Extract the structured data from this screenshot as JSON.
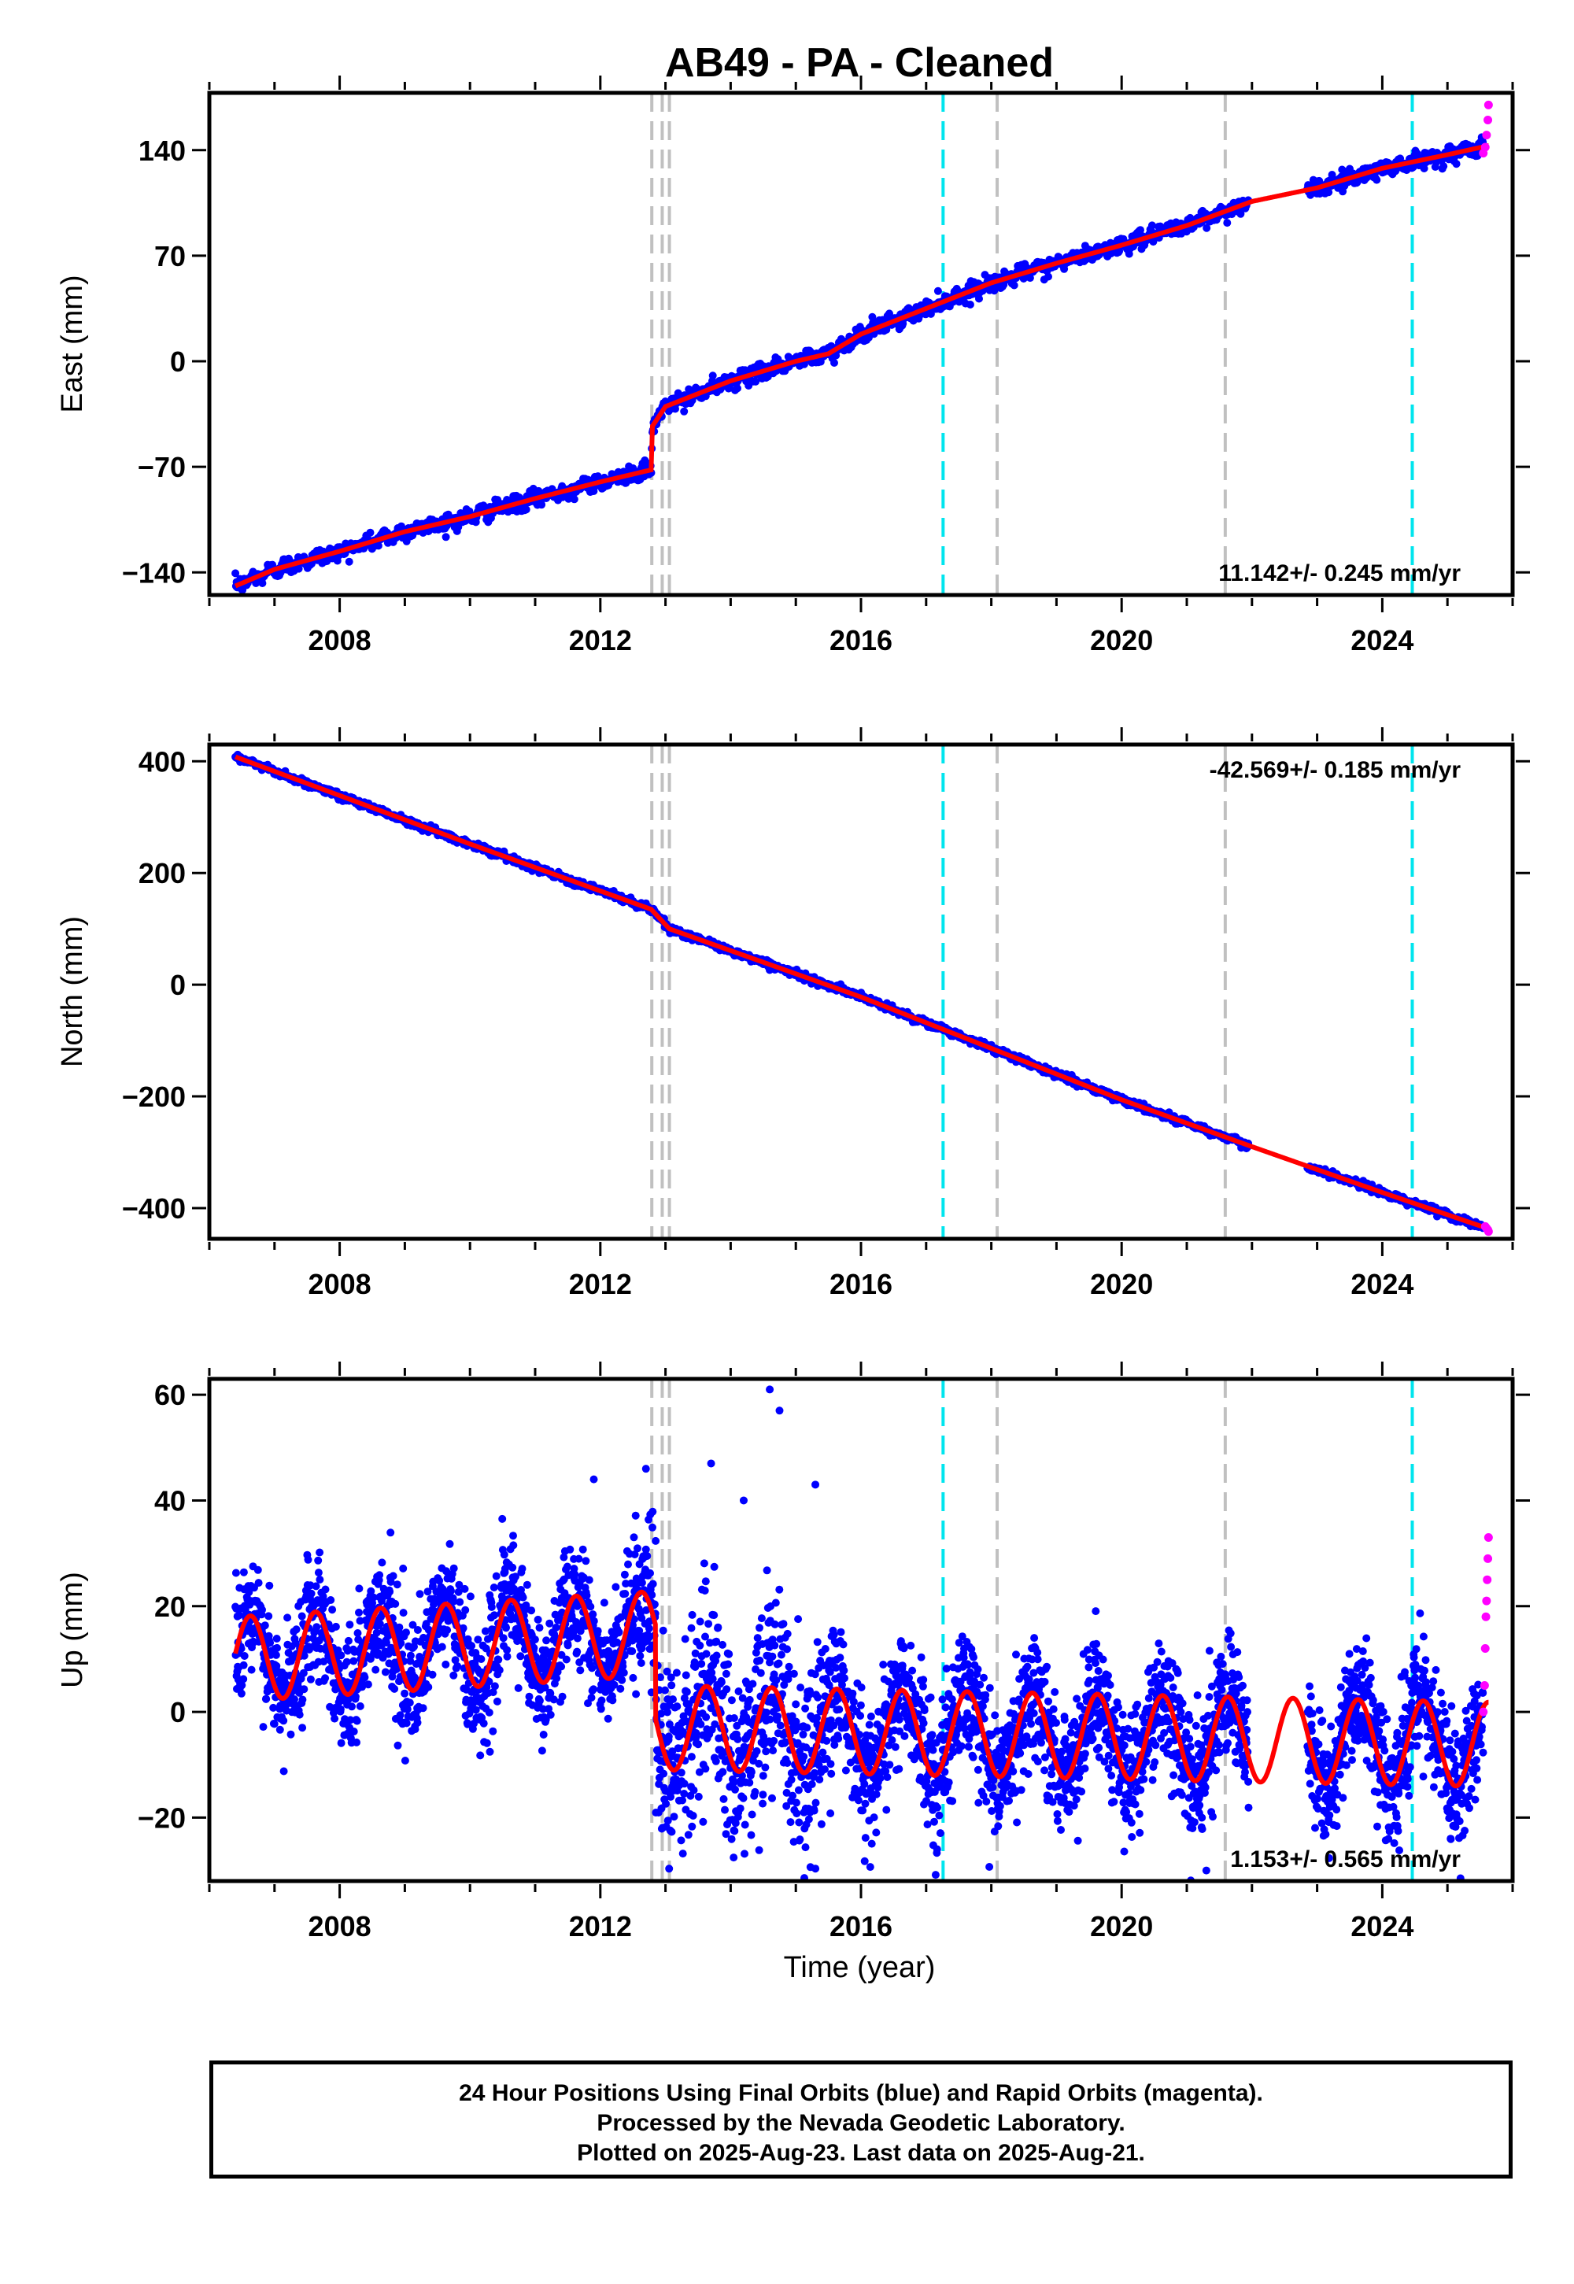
{
  "title": "AB49  - PA - Cleaned",
  "colors": {
    "final_orbits": "#0000ff",
    "rapid_orbits": "#ff00ff",
    "model": "#ff0000",
    "equipment_change": "#c0c0c0",
    "earthquake": "#00e5ee"
  },
  "shared_xaxis": {
    "xlim": [
      2006.0,
      2026.0
    ],
    "ticks": [
      2008,
      2012,
      2016,
      2020,
      2024
    ],
    "tick_labels": [
      "2008",
      "2012",
      "2016",
      "2020",
      "2024"
    ],
    "xlabel": "Time (year)"
  },
  "event_lines": {
    "gray": [
      2012.79,
      2012.95,
      2013.06,
      2018.09,
      2021.59
    ],
    "cyan": [
      2017.26,
      2024.46
    ]
  },
  "chart_data": [
    {
      "type": "scatter",
      "ylabel": "East (mm)",
      "ylim": [
        -155,
        178
      ],
      "yticks": [
        -140,
        -70,
        0,
        70,
        140
      ],
      "ytick_labels": [
        "−140",
        "−70",
        "0",
        "70",
        "140"
      ],
      "rate_label": "11.142+/- 0.245 mm/yr",
      "x_range": [
        2006.4,
        2025.63
      ],
      "series": [
        {
          "name": "model",
          "x": [
            2006.4,
            2007.0,
            2008.0,
            2009.0,
            2010.0,
            2011.0,
            2012.0,
            2012.78,
            2012.8,
            2013.0,
            2014.0,
            2015.0,
            2015.5,
            2016.0,
            2017.0,
            2018.0,
            2019.0,
            2020.0,
            2021.0,
            2022.0,
            2023.0,
            2024.0,
            2025.0,
            2025.63
          ],
          "y": [
            -149,
            -138,
            -126,
            -113,
            -103,
            -91,
            -80,
            -72,
            -43,
            -30,
            -13,
            0,
            5,
            18,
            35,
            52,
            65,
            77,
            90,
            106,
            115,
            128,
            137,
            143
          ]
        },
        {
          "name": "rapid",
          "x": [
            2025.55,
            2025.58,
            2025.6,
            2025.62,
            2025.63
          ],
          "y": [
            138,
            142,
            150,
            160,
            170
          ]
        }
      ]
    },
    {
      "type": "scatter",
      "ylabel": "North (mm)",
      "ylim": [
        -455,
        430
      ],
      "yticks": [
        -400,
        -200,
        0,
        200,
        400
      ],
      "ytick_labels": [
        "−400",
        "−200",
        "0",
        "200",
        "400"
      ],
      "rate_label": "-42.569+/- 0.185 mm/yr",
      "x_range": [
        2006.4,
        2025.63
      ],
      "series": [
        {
          "name": "model",
          "x": [
            2006.4,
            2010.0,
            2012.78,
            2012.9,
            2013.06,
            2016.0,
            2020.0,
            2022.0,
            2024.0,
            2025.63
          ],
          "y": [
            408,
            252,
            135,
            120,
            100,
            -22,
            -206,
            -290,
            -372,
            -437
          ]
        },
        {
          "name": "rapid",
          "x": [
            2025.58,
            2025.6,
            2025.62,
            2025.63
          ],
          "y": [
            -433,
            -436,
            -439,
            -442
          ]
        }
      ]
    },
    {
      "type": "scatter",
      "ylabel": "Up (mm)",
      "ylim": [
        -32,
        63
      ],
      "yticks": [
        -20,
        0,
        20,
        40,
        60
      ],
      "ytick_labels": [
        "−20",
        "0",
        "20",
        "40",
        "60"
      ],
      "rate_label": "1.153+/- 0.565 mm/yr",
      "x_range": [
        2006.4,
        2025.63
      ],
      "series": [
        {
          "name": "model",
          "description": "annual sinusoid, amplitude ~8 mm, mean rising from ~10 mm (2006) to ~15 mm (2012.8), then ~-3 to -6 mm after 2013"
        },
        {
          "name": "rapid",
          "x": [
            2025.55,
            2025.57,
            2025.58,
            2025.59,
            2025.6,
            2025.61,
            2025.62,
            2025.63
          ],
          "y": [
            0,
            5,
            12,
            18,
            21,
            25,
            29,
            33
          ]
        }
      ]
    }
  ],
  "footer": {
    "line1": "24 Hour Positions Using Final Orbits (blue) and Rapid Orbits (magenta).",
    "line2": "Processed by the Nevada Geodetic Laboratory.",
    "line3": "Plotted on 2025-Aug-23. Last data on 2025-Aug-21."
  }
}
